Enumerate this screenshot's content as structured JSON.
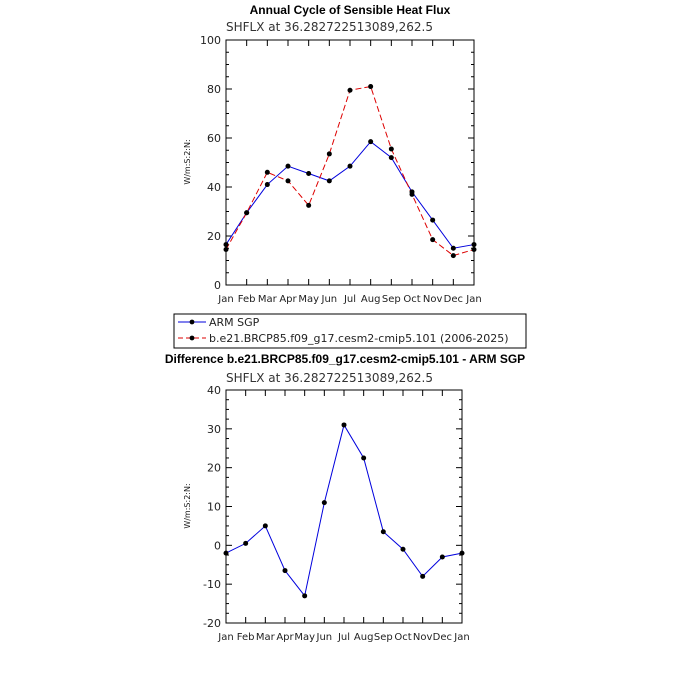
{
  "colors": {
    "obs": "#0000dd",
    "model": "#dd0000",
    "marker": "#000000"
  },
  "chart_data": [
    {
      "type": "line",
      "title": "Annual Cycle of Sensible Heat Flux",
      "subtitle": "SHFLX at 36.282722513089,262.5",
      "ylabel": "W/m:S:2:N:",
      "ylim": [
        0,
        100
      ],
      "yticks": [
        "0",
        "20",
        "40",
        "60",
        "80",
        "100"
      ],
      "categories": [
        "Jan",
        "Feb",
        "Mar",
        "Apr",
        "May",
        "Jun",
        "Jul",
        "Aug",
        "Sep",
        "Oct",
        "Nov",
        "Dec",
        "Jan"
      ],
      "legend_position": "bottom",
      "series": [
        {
          "name": "ARM SGP",
          "style": "solid",
          "color": "#0000dd",
          "values": [
            16.5,
            29.5,
            41,
            48.5,
            45.5,
            42.5,
            48.5,
            58.5,
            52,
            38,
            26.5,
            15,
            16.5
          ]
        },
        {
          "name": "b.e21.BRCP85.f09_g17.cesm2-cmip5.101 (2006-2025)",
          "style": "dashed",
          "color": "#dd0000",
          "values": [
            14.5,
            29.5,
            46,
            42.5,
            32.5,
            53.5,
            79.5,
            81,
            55.5,
            37,
            18.5,
            12,
            14.5
          ]
        }
      ]
    },
    {
      "type": "line",
      "title": "Difference b.e21.BRCP85.f09_g17.cesm2-cmip5.101 - ARM SGP",
      "subtitle": "SHFLX at 36.282722513089,262.5",
      "ylabel": "W/m:S:2:N:",
      "ylim": [
        -20,
        40
      ],
      "yticks": [
        "-20",
        "-10",
        "0",
        "10",
        "20",
        "30",
        "40"
      ],
      "categories": [
        "Jan",
        "Feb",
        "Mar",
        "Apr",
        "May",
        "Jun",
        "Jul",
        "Aug",
        "Sep",
        "Oct",
        "Nov",
        "Dec",
        "Jan"
      ],
      "series": [
        {
          "style": "solid",
          "color": "#0000dd",
          "values": [
            -2,
            0.5,
            5,
            -6.5,
            -13,
            11,
            31,
            22.5,
            3.5,
            -1,
            -8,
            -3,
            -2
          ]
        }
      ]
    }
  ]
}
